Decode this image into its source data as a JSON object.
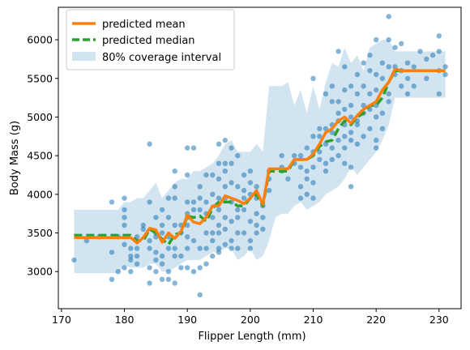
{
  "chart_data": {
    "type": "scatter",
    "title": "",
    "xlabel": "Flipper Length (mm)",
    "ylabel": "Body Mass (g)",
    "xlim": [
      169.5,
      233.5
    ],
    "ylim": [
      2520,
      6420
    ],
    "xticks": [
      170,
      180,
      190,
      200,
      210,
      220,
      230
    ],
    "yticks": [
      3000,
      3500,
      4000,
      4500,
      5000,
      5500,
      6000
    ],
    "xtick_labels": [
      "170",
      "180",
      "190",
      "200",
      "210",
      "220",
      "230"
    ],
    "ytick_labels": [
      "3000",
      "3500",
      "4000",
      "4500",
      "5000",
      "5500",
      "6000"
    ],
    "grid": false,
    "legend_position": "top-left",
    "legend": {
      "mean_label": "predicted mean",
      "median_label": "predicted median",
      "interval_label": "80% coverage interval"
    },
    "colors": {
      "points": "#1f77b4",
      "mean": "#ff7f0e",
      "median": "#2ca02c",
      "interval": "#1f77b4"
    },
    "points": [
      [
        172,
        3150
      ],
      [
        174,
        3400
      ],
      [
        176,
        3450
      ],
      [
        178,
        3250
      ],
      [
        178,
        3900
      ],
      [
        178,
        2900
      ],
      [
        179,
        3450
      ],
      [
        179,
        3000
      ],
      [
        180,
        3950
      ],
      [
        180,
        3800
      ],
      [
        180,
        3600
      ],
      [
        180,
        3700
      ],
      [
        180,
        3350
      ],
      [
        180,
        3050
      ],
      [
        181,
        3300
      ],
      [
        181,
        3200
      ],
      [
        181,
        3000
      ],
      [
        181,
        3150
      ],
      [
        182,
        3100
      ],
      [
        182,
        3200
      ],
      [
        182,
        3300
      ],
      [
        182,
        3450
      ],
      [
        183,
        3600
      ],
      [
        183,
        3550
      ],
      [
        184,
        4650
      ],
      [
        184,
        3900
      ],
      [
        184,
        3400
      ],
      [
        184,
        3050
      ],
      [
        184,
        3300
      ],
      [
        184,
        2850
      ],
      [
        185,
        3700
      ],
      [
        185,
        3500
      ],
      [
        185,
        3450
      ],
      [
        185,
        3250
      ],
      [
        185,
        3150
      ],
      [
        185,
        3000
      ],
      [
        186,
        3800
      ],
      [
        186,
        3600
      ],
      [
        186,
        3500
      ],
      [
        186,
        3200
      ],
      [
        186,
        3100
      ],
      [
        186,
        2900
      ],
      [
        187,
        3950
      ],
      [
        187,
        3700
      ],
      [
        187,
        3450
      ],
      [
        187,
        3300
      ],
      [
        187,
        3000
      ],
      [
        187,
        2900
      ],
      [
        188,
        4300
      ],
      [
        188,
        4100
      ],
      [
        188,
        3950
      ],
      [
        188,
        3600
      ],
      [
        188,
        3300
      ],
      [
        188,
        3200
      ],
      [
        188,
        2850
      ],
      [
        189,
        3600
      ],
      [
        189,
        3500
      ],
      [
        189,
        3200
      ],
      [
        189,
        3050
      ],
      [
        190,
        4600
      ],
      [
        190,
        4250
      ],
      [
        190,
        3900
      ],
      [
        190,
        3750
      ],
      [
        190,
        3700
      ],
      [
        190,
        3600
      ],
      [
        190,
        3450
      ],
      [
        190,
        3300
      ],
      [
        190,
        3050
      ],
      [
        191,
        4600
      ],
      [
        191,
        3900
      ],
      [
        191,
        3800
      ],
      [
        191,
        3400
      ],
      [
        191,
        3000
      ],
      [
        192,
        4100
      ],
      [
        192,
        3950
      ],
      [
        192,
        3800
      ],
      [
        192,
        3300
      ],
      [
        192,
        3050
      ],
      [
        192,
        2700
      ],
      [
        193,
        4250
      ],
      [
        193,
        3900
      ],
      [
        193,
        3750
      ],
      [
        193,
        3500
      ],
      [
        193,
        3300
      ],
      [
        193,
        3100
      ],
      [
        194,
        4250
      ],
      [
        194,
        4000
      ],
      [
        194,
        3700
      ],
      [
        194,
        3500
      ],
      [
        194,
        3400
      ],
      [
        194,
        3200
      ],
      [
        195,
        4650
      ],
      [
        195,
        4400
      ],
      [
        195,
        4200
      ],
      [
        195,
        3950
      ],
      [
        195,
        3800
      ],
      [
        195,
        3600
      ],
      [
        195,
        3500
      ],
      [
        195,
        3300
      ],
      [
        195,
        3250
      ],
      [
        196,
        4700
      ],
      [
        196,
        4400
      ],
      [
        196,
        4300
      ],
      [
        196,
        4100
      ],
      [
        196,
        3950
      ],
      [
        196,
        3700
      ],
      [
        196,
        3550
      ],
      [
        196,
        3350
      ],
      [
        197,
        4600
      ],
      [
        197,
        4400
      ],
      [
        197,
        4150
      ],
      [
        197,
        3900
      ],
      [
        197,
        3650
      ],
      [
        197,
        3400
      ],
      [
        197,
        3300
      ],
      [
        198,
        4500
      ],
      [
        198,
        4100
      ],
      [
        198,
        3800
      ],
      [
        198,
        3700
      ],
      [
        198,
        3500
      ],
      [
        198,
        3300
      ],
      [
        199,
        4250
      ],
      [
        199,
        4050
      ],
      [
        199,
        3950
      ],
      [
        199,
        3800
      ],
      [
        199,
        3500
      ],
      [
        200,
        4300
      ],
      [
        200,
        4150
      ],
      [
        200,
        4000
      ],
      [
        200,
        3650
      ],
      [
        200,
        3400
      ],
      [
        200,
        3300
      ],
      [
        201,
        4100
      ],
      [
        201,
        3950
      ],
      [
        201,
        3750
      ],
      [
        201,
        3600
      ],
      [
        201,
        3500
      ],
      [
        202,
        3850
      ],
      [
        202,
        3700
      ],
      [
        202,
        3550
      ],
      [
        203,
        4300
      ],
      [
        203,
        4200
      ],
      [
        203,
        4050
      ],
      [
        205,
        4500
      ],
      [
        205,
        4350
      ],
      [
        205,
        4300
      ],
      [
        206,
        4200
      ],
      [
        207,
        4500
      ],
      [
        207,
        4400
      ],
      [
        208,
        4500
      ],
      [
        208,
        4350
      ],
      [
        208,
        4100
      ],
      [
        208,
        3950
      ],
      [
        209,
        4600
      ],
      [
        209,
        4300
      ],
      [
        209,
        4200
      ],
      [
        209,
        4000
      ],
      [
        210,
        5500
      ],
      [
        210,
        4750
      ],
      [
        210,
        4550
      ],
      [
        210,
        4350
      ],
      [
        210,
        4150
      ],
      [
        210,
        3950
      ],
      [
        211,
        4850
      ],
      [
        211,
        4750
      ],
      [
        211,
        4550
      ],
      [
        211,
        4450
      ],
      [
        212,
        5300
      ],
      [
        212,
        4850
      ],
      [
        212,
        4650
      ],
      [
        212,
        4400
      ],
      [
        212,
        4300
      ],
      [
        213,
        5400
      ],
      [
        213,
        5200
      ],
      [
        213,
        4900
      ],
      [
        213,
        4800
      ],
      [
        213,
        4600
      ],
      [
        213,
        4450
      ],
      [
        214,
        5850
      ],
      [
        214,
        5200
      ],
      [
        214,
        5050
      ],
      [
        214,
        4950
      ],
      [
        214,
        4700
      ],
      [
        214,
        4500
      ],
      [
        215,
        5650
      ],
      [
        215,
        5350
      ],
      [
        215,
        5100
      ],
      [
        215,
        4900
      ],
      [
        215,
        4750
      ],
      [
        215,
        4600
      ],
      [
        215,
        4400
      ],
      [
        216,
        5400
      ],
      [
        216,
        5150
      ],
      [
        216,
        5000
      ],
      [
        216,
        4800
      ],
      [
        216,
        4700
      ],
      [
        216,
        4350
      ],
      [
        216,
        4100
      ],
      [
        217,
        5550
      ],
      [
        217,
        5300
      ],
      [
        217,
        4950
      ],
      [
        217,
        4900
      ],
      [
        217,
        4650
      ],
      [
        218,
        5700
      ],
      [
        218,
        5400
      ],
      [
        218,
        5150
      ],
      [
        218,
        5050
      ],
      [
        218,
        4750
      ],
      [
        219,
        5800
      ],
      [
        219,
        5600
      ],
      [
        219,
        5300
      ],
      [
        219,
        5100
      ],
      [
        219,
        4850
      ],
      [
        220,
        6000
      ],
      [
        220,
        5550
      ],
      [
        220,
        5350
      ],
      [
        220,
        5150
      ],
      [
        220,
        5000
      ],
      [
        220,
        4700
      ],
      [
        220,
        4600
      ],
      [
        221,
        5700
      ],
      [
        221,
        5500
      ],
      [
        221,
        5050
      ],
      [
        221,
        4850
      ],
      [
        222,
        6300
      ],
      [
        222,
        6000
      ],
      [
        222,
        5650
      ],
      [
        222,
        5300
      ],
      [
        222,
        5200
      ],
      [
        223,
        5900
      ],
      [
        223,
        5650
      ],
      [
        223,
        5550
      ],
      [
        224,
        5950
      ],
      [
        224,
        5600
      ],
      [
        224,
        5400
      ],
      [
        225,
        5700
      ],
      [
        225,
        5500
      ],
      [
        225,
        5300
      ],
      [
        226,
        5650
      ],
      [
        226,
        5400
      ],
      [
        227,
        5850
      ],
      [
        228,
        5500
      ],
      [
        228,
        5750
      ],
      [
        229,
        5800
      ],
      [
        230,
        6050
      ],
      [
        230,
        5850
      ],
      [
        230,
        5600
      ],
      [
        230,
        5300
      ],
      [
        231,
        5650
      ],
      [
        231,
        5550
      ]
    ],
    "mean": {
      "x": [
        172,
        181,
        182,
        183,
        184,
        185,
        186,
        187,
        188,
        189,
        190,
        191,
        192,
        193,
        194,
        195,
        196,
        197,
        198,
        199,
        200,
        201,
        202,
        203,
        204,
        205,
        206,
        207,
        208,
        209,
        210,
        211,
        212,
        213,
        214,
        215,
        216,
        217,
        218,
        219,
        220,
        221,
        222,
        223,
        224,
        231
      ],
      "y": [
        3440,
        3440,
        3370,
        3440,
        3560,
        3540,
        3380,
        3500,
        3430,
        3520,
        3730,
        3640,
        3620,
        3700,
        3850,
        3850,
        3980,
        3950,
        3920,
        3880,
        3950,
        4050,
        3870,
        4330,
        4330,
        4330,
        4330,
        4450,
        4450,
        4450,
        4520,
        4650,
        4800,
        4850,
        4950,
        5000,
        4920,
        5020,
        5100,
        5150,
        5200,
        5350,
        5450,
        5620,
        5600,
        5600
      ]
    },
    "median": {
      "x": [
        172,
        181,
        182,
        183,
        184,
        185,
        186,
        187,
        188,
        189,
        190,
        191,
        192,
        193,
        194,
        195,
        196,
        197,
        198,
        199,
        200,
        201,
        202,
        203,
        204,
        205,
        206,
        207,
        208,
        209,
        210,
        211,
        212,
        213,
        214,
        215,
        216,
        217,
        218,
        219,
        220,
        221,
        222,
        223,
        224,
        231
      ],
      "y": [
        3470,
        3470,
        3400,
        3400,
        3550,
        3500,
        3420,
        3350,
        3480,
        3500,
        3720,
        3700,
        3720,
        3650,
        3820,
        3900,
        3900,
        3900,
        3850,
        3850,
        3950,
        4000,
        3850,
        4300,
        4300,
        4300,
        4300,
        4450,
        4450,
        4450,
        4500,
        4620,
        4680,
        4700,
        4850,
        4950,
        4900,
        5000,
        5050,
        5150,
        5150,
        5250,
        5450,
        5600,
        5600,
        5600
      ]
    },
    "interval": {
      "x": [
        172,
        176,
        179,
        180,
        181,
        182,
        183,
        184,
        185,
        186,
        187,
        188,
        189,
        190,
        191,
        192,
        193,
        194,
        195,
        196,
        197,
        198,
        199,
        200,
        201,
        202,
        203,
        204,
        205,
        206,
        207,
        208,
        209,
        210,
        211,
        212,
        213,
        214,
        215,
        216,
        217,
        218,
        219,
        220,
        221,
        222,
        223,
        224,
        231
      ],
      "low": [
        2980,
        2980,
        2980,
        3080,
        3050,
        3050,
        3050,
        3100,
        3100,
        3000,
        3000,
        3050,
        3100,
        3150,
        3150,
        3150,
        3200,
        3250,
        3250,
        3300,
        3300,
        3150,
        3200,
        3300,
        3150,
        3200,
        3400,
        3700,
        3750,
        3750,
        3850,
        3900,
        3800,
        3850,
        3900,
        4000,
        4050,
        4100,
        4200,
        4350,
        4250,
        4350,
        4450,
        4550,
        4700,
        4900,
        5250,
        5250,
        5250
      ],
      "high": [
        3800,
        3800,
        3800,
        3900,
        3900,
        3950,
        3950,
        4050,
        4150,
        3950,
        4050,
        4150,
        4200,
        4200,
        4300,
        4300,
        4350,
        4400,
        4500,
        4650,
        4700,
        4550,
        4550,
        4550,
        4650,
        4550,
        5400,
        5400,
        5400,
        5450,
        5150,
        5350,
        5050,
        5400,
        5100,
        5450,
        5700,
        5650,
        5900,
        5700,
        5800,
        5600,
        5900,
        5950,
        6000,
        6000,
        5850,
        5850,
        5850
      ]
    }
  }
}
